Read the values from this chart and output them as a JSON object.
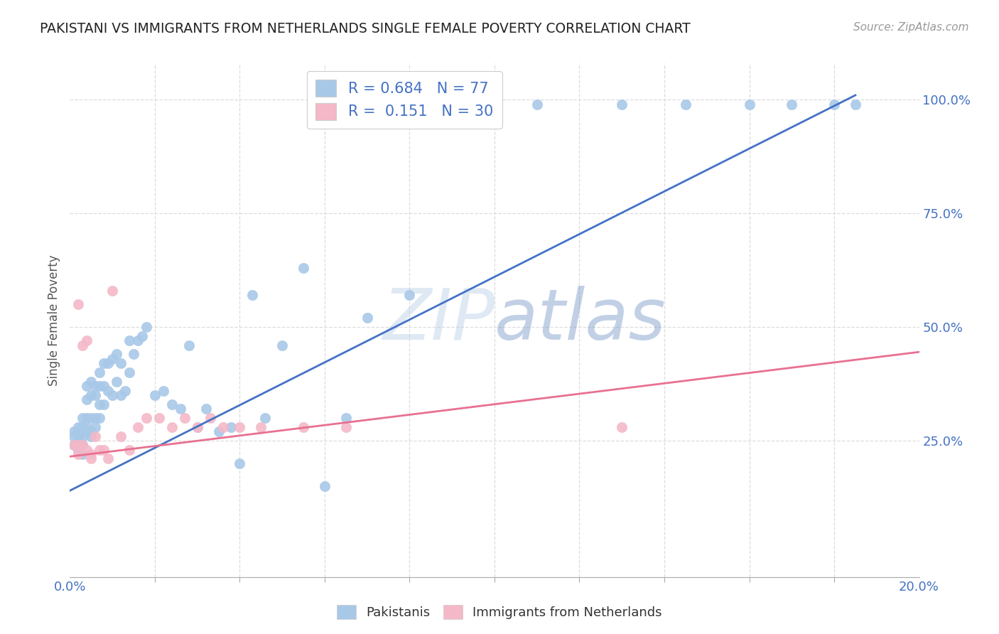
{
  "title": "PAKISTANI VS IMMIGRANTS FROM NETHERLANDS SINGLE FEMALE POVERTY CORRELATION CHART",
  "source": "Source: ZipAtlas.com",
  "ylabel_label": "Single Female Poverty",
  "blue_color": "#a8c8e8",
  "pink_color": "#f4b8c8",
  "blue_line_color": "#4472c4",
  "pink_line_color": "#e87090",
  "legend_text_color": "#4472c4",
  "xmin": 0.0,
  "xmax": 0.2,
  "ymin": -0.05,
  "ymax": 1.08,
  "blue_line_x0": 0.0,
  "blue_line_y0": 0.14,
  "blue_line_x1": 0.185,
  "blue_line_y1": 1.01,
  "pink_line_x0": 0.0,
  "pink_line_y0": 0.215,
  "pink_line_x1": 0.2,
  "pink_line_y1": 0.445,
  "blue_scatter_x": [
    0.001,
    0.001,
    0.001,
    0.002,
    0.002,
    0.002,
    0.002,
    0.002,
    0.003,
    0.003,
    0.003,
    0.003,
    0.003,
    0.003,
    0.004,
    0.004,
    0.004,
    0.004,
    0.004,
    0.005,
    0.005,
    0.005,
    0.005,
    0.005,
    0.006,
    0.006,
    0.006,
    0.006,
    0.007,
    0.007,
    0.007,
    0.007,
    0.008,
    0.008,
    0.008,
    0.009,
    0.009,
    0.01,
    0.01,
    0.011,
    0.011,
    0.012,
    0.012,
    0.013,
    0.014,
    0.014,
    0.015,
    0.016,
    0.017,
    0.018,
    0.02,
    0.022,
    0.024,
    0.026,
    0.028,
    0.03,
    0.032,
    0.035,
    0.038,
    0.04,
    0.043,
    0.046,
    0.05,
    0.055,
    0.06,
    0.065,
    0.07,
    0.08,
    0.09,
    0.1,
    0.11,
    0.13,
    0.145,
    0.16,
    0.17,
    0.18,
    0.185
  ],
  "blue_scatter_y": [
    0.24,
    0.26,
    0.27,
    0.23,
    0.25,
    0.26,
    0.27,
    0.28,
    0.22,
    0.24,
    0.26,
    0.27,
    0.28,
    0.3,
    0.27,
    0.28,
    0.3,
    0.34,
    0.37,
    0.26,
    0.27,
    0.3,
    0.35,
    0.38,
    0.28,
    0.3,
    0.35,
    0.37,
    0.3,
    0.33,
    0.37,
    0.4,
    0.33,
    0.37,
    0.42,
    0.36,
    0.42,
    0.35,
    0.43,
    0.38,
    0.44,
    0.35,
    0.42,
    0.36,
    0.4,
    0.47,
    0.44,
    0.47,
    0.48,
    0.5,
    0.35,
    0.36,
    0.33,
    0.32,
    0.46,
    0.28,
    0.32,
    0.27,
    0.28,
    0.2,
    0.57,
    0.3,
    0.46,
    0.63,
    0.15,
    0.3,
    0.52,
    0.57,
    0.99,
    0.99,
    0.99,
    0.99,
    0.99,
    0.99,
    0.99,
    0.99,
    0.99
  ],
  "pink_scatter_x": [
    0.001,
    0.002,
    0.002,
    0.002,
    0.003,
    0.003,
    0.004,
    0.004,
    0.005,
    0.005,
    0.006,
    0.007,
    0.008,
    0.009,
    0.01,
    0.012,
    0.014,
    0.016,
    0.018,
    0.021,
    0.024,
    0.027,
    0.03,
    0.033,
    0.036,
    0.04,
    0.045,
    0.055,
    0.065,
    0.13
  ],
  "pink_scatter_y": [
    0.24,
    0.22,
    0.24,
    0.55,
    0.24,
    0.46,
    0.23,
    0.47,
    0.22,
    0.21,
    0.26,
    0.23,
    0.23,
    0.21,
    0.58,
    0.26,
    0.23,
    0.28,
    0.3,
    0.3,
    0.28,
    0.3,
    0.28,
    0.3,
    0.28,
    0.28,
    0.28,
    0.28,
    0.28,
    0.28
  ]
}
